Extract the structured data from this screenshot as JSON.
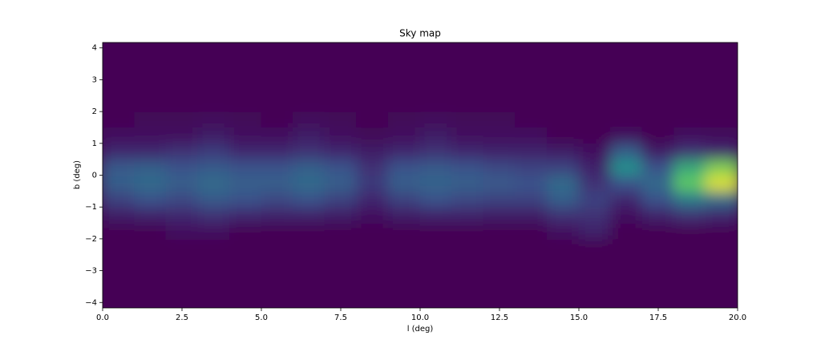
{
  "chart_data": {
    "type": "heatmap",
    "title": "Sky map",
    "x_label": "l (deg)",
    "y_label": "b (deg)",
    "xlim": [
      0,
      20
    ],
    "ylim": [
      -4.17,
      4.17
    ],
    "xticks": [
      {
        "value": 0,
        "label": "0.0"
      },
      {
        "value": 2.5,
        "label": "2.5"
      },
      {
        "value": 5,
        "label": "5.0"
      },
      {
        "value": 7.5,
        "label": "7.5"
      },
      {
        "value": 10,
        "label": "10.0"
      },
      {
        "value": 12.5,
        "label": "12.5"
      },
      {
        "value": 15,
        "label": "15.0"
      },
      {
        "value": 17.5,
        "label": "17.5"
      },
      {
        "value": 20,
        "label": "20.0"
      }
    ],
    "yticks": [
      {
        "value": -4,
        "label": "−4"
      },
      {
        "value": -3,
        "label": "−3"
      },
      {
        "value": -2,
        "label": "−2"
      },
      {
        "value": -1,
        "label": "−1"
      },
      0,
      1,
      2,
      3,
      4
    ],
    "x_bins": [
      0,
      1,
      2,
      3,
      4,
      5,
      6,
      7,
      8,
      9,
      10,
      11,
      12,
      13,
      14,
      15,
      16,
      17,
      18,
      19,
      20
    ],
    "y_bins": [
      -4,
      -3.5,
      -3,
      -2.5,
      -2,
      -1.5,
      -1,
      -0.5,
      0,
      0.5,
      1,
      1.5,
      2,
      2.5,
      3,
      3.5,
      4
    ],
    "colormap": "viridis",
    "values": [
      [
        0,
        0,
        0,
        0,
        0,
        0,
        0,
        0,
        0,
        0,
        0,
        0,
        0,
        0,
        0,
        0,
        0,
        0,
        0,
        0
      ],
      [
        0,
        0,
        0,
        0,
        0,
        0,
        0,
        0,
        0,
        0,
        0,
        0,
        0,
        0,
        0,
        0,
        0,
        0,
        0,
        0
      ],
      [
        0,
        0,
        0,
        0,
        0,
        0,
        0,
        0,
        0,
        0,
        0,
        0,
        0,
        0,
        0,
        0,
        0,
        0,
        0,
        0
      ],
      [
        0,
        0,
        0,
        0,
        0,
        0,
        0,
        0,
        0,
        0,
        0,
        0,
        0,
        0,
        0,
        0,
        0,
        0,
        0,
        0
      ],
      [
        0,
        0,
        0.05,
        0.05,
        0,
        0,
        0,
        0,
        0,
        0,
        0,
        0,
        0,
        0,
        0.05,
        0.1,
        0,
        0,
        0,
        0
      ],
      [
        0.08,
        0.1,
        0.12,
        0.15,
        0.12,
        0.1,
        0.1,
        0.08,
        0.05,
        0.08,
        0.1,
        0.1,
        0.08,
        0.08,
        0.15,
        0.15,
        0.05,
        0.1,
        0.15,
        0.12
      ],
      [
        0.2,
        0.25,
        0.22,
        0.28,
        0.25,
        0.22,
        0.25,
        0.2,
        0.12,
        0.2,
        0.25,
        0.22,
        0.2,
        0.2,
        0.3,
        0.2,
        0.12,
        0.25,
        0.4,
        0.35
      ],
      [
        0.3,
        0.35,
        0.3,
        0.35,
        0.3,
        0.3,
        0.35,
        0.3,
        0.18,
        0.3,
        0.32,
        0.3,
        0.28,
        0.25,
        0.35,
        0.15,
        0.25,
        0.35,
        0.75,
        0.95
      ],
      [
        0.28,
        0.3,
        0.25,
        0.28,
        0.25,
        0.25,
        0.3,
        0.25,
        0.15,
        0.25,
        0.28,
        0.25,
        0.22,
        0.2,
        0.2,
        0.1,
        0.5,
        0.25,
        0.6,
        0.8
      ],
      [
        0.12,
        0.12,
        0.15,
        0.18,
        0.12,
        0.12,
        0.15,
        0.12,
        0.08,
        0.12,
        0.15,
        0.12,
        0.1,
        0.1,
        0.08,
        0.05,
        0.3,
        0.08,
        0.15,
        0.12
      ],
      [
        0.05,
        0.05,
        0.05,
        0.08,
        0.05,
        0.05,
        0.08,
        0.05,
        0.02,
        0.05,
        0.08,
        0.05,
        0.05,
        0.05,
        0,
        0,
        0.05,
        0,
        0.05,
        0.03
      ],
      [
        0,
        0.02,
        0.02,
        0.03,
        0.02,
        0,
        0.03,
        0.02,
        0,
        0.02,
        0.03,
        0.02,
        0.02,
        0,
        0,
        0,
        0,
        0,
        0,
        0
      ],
      [
        0,
        0,
        0,
        0,
        0,
        0,
        0,
        0,
        0,
        0,
        0,
        0,
        0,
        0,
        0,
        0,
        0,
        0,
        0,
        0
      ],
      [
        0,
        0,
        0,
        0,
        0,
        0,
        0,
        0,
        0,
        0,
        0,
        0,
        0,
        0,
        0,
        0,
        0,
        0,
        0,
        0
      ],
      [
        0,
        0,
        0,
        0,
        0,
        0,
        0,
        0,
        0,
        0,
        0,
        0,
        0,
        0,
        0,
        0,
        0,
        0,
        0,
        0
      ],
      [
        0,
        0,
        0,
        0,
        0,
        0,
        0,
        0,
        0,
        0,
        0,
        0,
        0,
        0,
        0,
        0,
        0,
        0,
        0,
        0
      ]
    ]
  }
}
